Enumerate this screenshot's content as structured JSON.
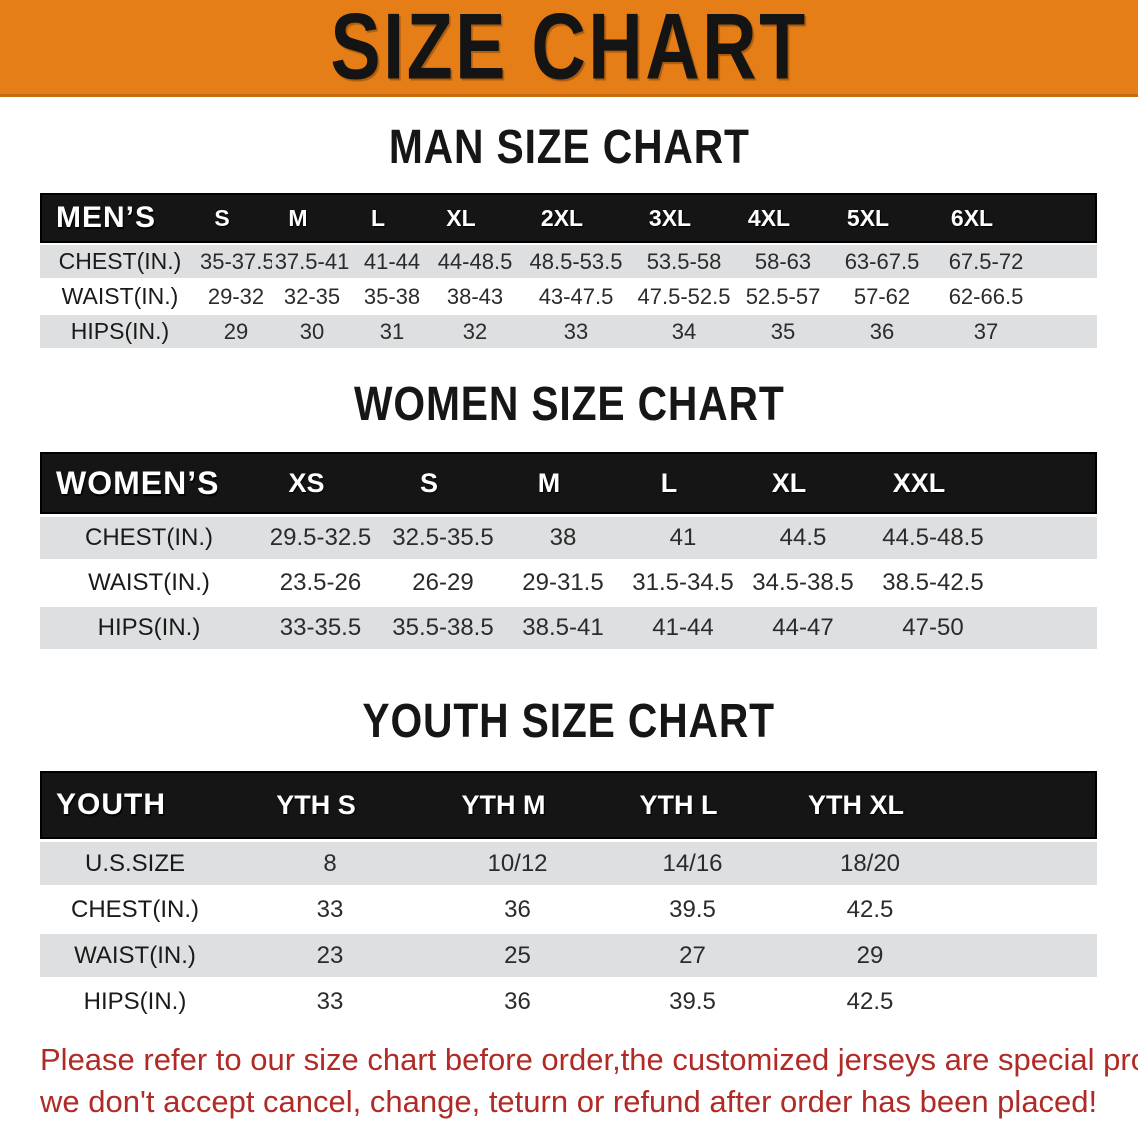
{
  "banner": {
    "title": "SIZE CHART",
    "bg_color": "#E67E17"
  },
  "sections": [
    {
      "title": "MAN SIZE CHART",
      "header_label": "MEN’S",
      "columns": [
        "S",
        "M",
        "L",
        "XL",
        "2XL",
        "3XL",
        "4XL",
        "5XL",
        "6XL"
      ],
      "rows": [
        {
          "label": "CHEST(IN.)",
          "values": [
            "35-37.5",
            "37.5-41",
            "41-44",
            "44-48.5",
            "48.5-53.5",
            "53.5-58",
            "58-63",
            "63-67.5",
            "67.5-72"
          ]
        },
        {
          "label": "WAIST(IN.)",
          "values": [
            "29-32",
            "32-35",
            "35-38",
            "38-43",
            "43-47.5",
            "47.5-52.5",
            "52.5-57",
            "57-62",
            "62-66.5"
          ]
        },
        {
          "label": "HIPS(IN.)",
          "values": [
            "29",
            "30",
            "31",
            "32",
            "33",
            "34",
            "35",
            "36",
            "37"
          ]
        }
      ]
    },
    {
      "title": "WOMEN SIZE CHART",
      "header_label": "WOMEN’S",
      "columns": [
        "XS",
        "S",
        "M",
        "L",
        "XL",
        "XXL"
      ],
      "rows": [
        {
          "label": "CHEST(IN.)",
          "values": [
            "29.5-32.5",
            "32.5-35.5",
            "38",
            "41",
            "44.5",
            "44.5-48.5"
          ]
        },
        {
          "label": "WAIST(IN.)",
          "values": [
            "23.5-26",
            "26-29",
            "29-31.5",
            "31.5-34.5",
            "34.5-38.5",
            "38.5-42.5"
          ]
        },
        {
          "label": "HIPS(IN.)",
          "values": [
            "33-35.5",
            "35.5-38.5",
            "38.5-41",
            "41-44",
            "44-47",
            "47-50"
          ]
        }
      ]
    },
    {
      "title": "YOUTH SIZE CHART",
      "header_label": "YOUTH",
      "columns": [
        "YTH S",
        "YTH M",
        "YTH L",
        "YTH XL"
      ],
      "rows": [
        {
          "label": "U.S.SIZE",
          "values": [
            "8",
            "10/12",
            "14/16",
            "18/20"
          ]
        },
        {
          "label": "CHEST(IN.)",
          "values": [
            "33",
            "36",
            "39.5",
            "42.5"
          ]
        },
        {
          "label": "WAIST(IN.)",
          "values": [
            "23",
            "25",
            "27",
            "29"
          ]
        },
        {
          "label": "HIPS(IN.)",
          "values": [
            "33",
            "36",
            "39.5",
            "42.5"
          ]
        }
      ]
    }
  ],
  "disclaimer": {
    "lines": [
      "Please refer to our size chart before order,the customized jerseys are special products,",
      "we don't accept cancel, change, teturn or refund after order has been placed!"
    ],
    "color": "#B02B26"
  },
  "colors": {
    "banner_orange": "#E67E17",
    "banner_edge": "#C76A10",
    "table_header_black": "#151515",
    "row_gray": "#DEDFE0",
    "row_white": "#FFFFFF",
    "disclaimer_red": "#B02B26"
  }
}
